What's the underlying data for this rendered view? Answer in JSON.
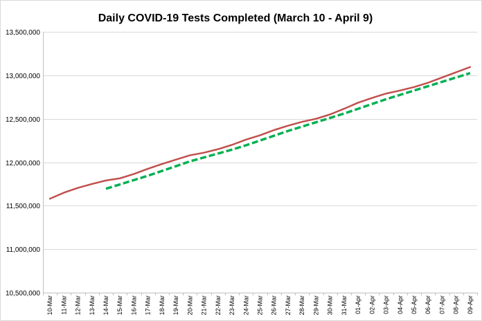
{
  "chart_data": {
    "type": "line",
    "title": "Daily COVID-19 Tests Completed (March 10 - April 9)",
    "xlabel": "",
    "ylabel": "",
    "categories": [
      "10-Mar",
      "11-Mar",
      "12-Mar",
      "13-Mar",
      "14-Mar",
      "15-Mar",
      "16-Mar",
      "17-Mar",
      "18-Mar",
      "19-Mar",
      "20-Mar",
      "21-Mar",
      "22-Mar",
      "23-Mar",
      "24-Mar",
      "25-Mar",
      "26-Mar",
      "27-Mar",
      "28-Mar",
      "29-Mar",
      "30-Mar",
      "31-Mar",
      "01-Apr",
      "02-Apr",
      "03-Apr",
      "04-Apr",
      "05-Apr",
      "06-Apr",
      "07-Apr",
      "08-Apr",
      "09-Apr"
    ],
    "ylim": [
      10500000,
      13500000
    ],
    "yticks": [
      10500000,
      11000000,
      11500000,
      12000000,
      12500000,
      13000000,
      13500000
    ],
    "ytick_labels": [
      "10,500,000",
      "11,000,000",
      "11,500,000",
      "12,000,000",
      "12,500,000",
      "13,000,000",
      "13,500,000"
    ],
    "grid": true,
    "series": [
      {
        "style": "solid",
        "color": "#c0504d",
        "values": [
          11580000,
          11650000,
          11705000,
          11750000,
          11790000,
          11815000,
          11865000,
          11925000,
          11980000,
          12030000,
          12080000,
          12110000,
          12150000,
          12200000,
          12260000,
          12310000,
          12370000,
          12420000,
          12465000,
          12500000,
          12550000,
          12615000,
          12685000,
          12740000,
          12790000,
          12825000,
          12865000,
          12915000,
          12975000,
          13035000,
          13095000
        ]
      },
      {
        "style": "dashed",
        "color": "#00b050",
        "values": [
          null,
          null,
          null,
          null,
          11695000,
          11745000,
          11795000,
          11845000,
          11900000,
          11955000,
          12010000,
          12055000,
          12100000,
          12145000,
          12195000,
          12250000,
          12305000,
          12360000,
          12410000,
          12460000,
          12510000,
          12560000,
          12615000,
          12670000,
          12725000,
          12775000,
          12825000,
          12875000,
          12925000,
          12975000,
          13025000
        ]
      }
    ]
  }
}
